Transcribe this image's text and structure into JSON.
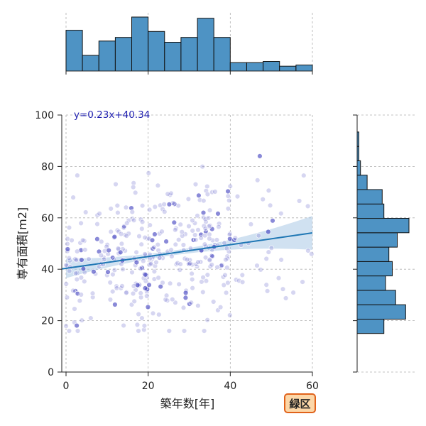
{
  "chart_data": {
    "type": "scatter",
    "title": "",
    "xlabel": "築年数[年]",
    "ylabel": "専有面積[m2]",
    "xlim": [
      -1,
      60
    ],
    "ylim": [
      0,
      100
    ],
    "xticks": [
      0,
      20,
      40,
      60
    ],
    "yticks": [
      0,
      20,
      40,
      60,
      80,
      100
    ],
    "grid": true,
    "annotation": "y=0.23x+40.34",
    "badge": "緑区",
    "regression": {
      "slope": 0.23,
      "intercept": 40.34
    },
    "marginal_x_histogram": {
      "bin_start": 0,
      "bin_width": 4,
      "counts": [
        34,
        13,
        25,
        28,
        45,
        33,
        24,
        28,
        44,
        28,
        7,
        7,
        8,
        4,
        5
      ]
    },
    "marginal_y_histogram": {
      "bin_start": 15,
      "bin_width": 5.6,
      "counts": [
        16,
        29,
        23,
        17,
        21,
        19,
        24,
        31,
        16,
        15,
        6,
        2,
        1,
        1
      ]
    },
    "colors": {
      "points": "#8a8ad8",
      "points_dense": "#2a2ab8",
      "regression_line": "#1f77b4",
      "confidence_band": "#a9c8e6",
      "histogram_fill": "#4e93c4",
      "histogram_edge": "#111111",
      "grid": "#b0b0b0",
      "equation_text": "#1f1fb0",
      "badge_fill": "#fcd7a8",
      "badge_edge": "#e0621a"
    }
  }
}
